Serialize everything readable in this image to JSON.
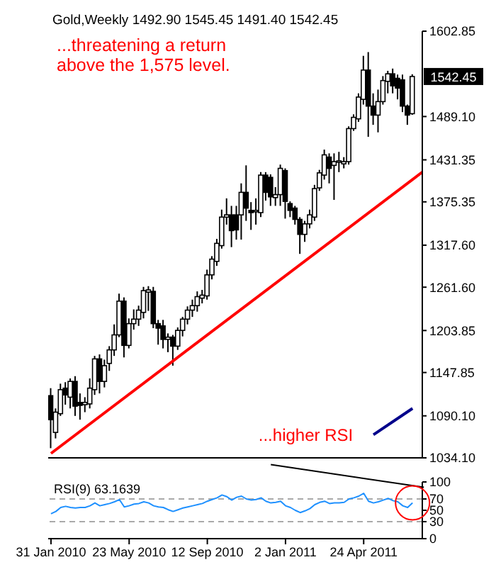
{
  "chart_data": [
    {
      "type": "candlestick",
      "title": "Gold,Weekly 1492.90 1545.45 1491.40 1542.45",
      "color": "#000000",
      "x": [
        "2010-01-31",
        "2010-02-07",
        "2010-02-14",
        "2010-02-21",
        "2010-02-28",
        "2010-03-07",
        "2010-03-14",
        "2010-03-21",
        "2010-03-28",
        "2010-04-04",
        "2010-04-11",
        "2010-04-18",
        "2010-04-25",
        "2010-05-02",
        "2010-05-09",
        "2010-05-16",
        "2010-05-23",
        "2010-05-30",
        "2010-06-06",
        "2010-06-13",
        "2010-06-20",
        "2010-06-27",
        "2010-07-04",
        "2010-07-11",
        "2010-07-18",
        "2010-07-25",
        "2010-08-01",
        "2010-08-08",
        "2010-08-15",
        "2010-08-22",
        "2010-08-29",
        "2010-09-05",
        "2010-09-12",
        "2010-09-19",
        "2010-09-26",
        "2010-10-03",
        "2010-10-10",
        "2010-10-17",
        "2010-10-24",
        "2010-10-31",
        "2010-11-07",
        "2010-11-14",
        "2010-11-21",
        "2010-11-28",
        "2010-12-05",
        "2010-12-12",
        "2010-12-19",
        "2010-12-26",
        "2011-01-02",
        "2011-01-09",
        "2011-01-16",
        "2011-01-23",
        "2011-01-30",
        "2011-02-06",
        "2011-02-13",
        "2011-02-20",
        "2011-02-27",
        "2011-03-06",
        "2011-03-13",
        "2011-03-20",
        "2011-03-27",
        "2011-04-03",
        "2011-04-10",
        "2011-04-17",
        "2011-04-24",
        "2011-05-01",
        "2011-05-08",
        "2011-05-15",
        "2011-05-22",
        "2011-05-29",
        "2011-06-05",
        "2011-06-12",
        "2011-06-19",
        "2011-06-26",
        "2011-07-03"
      ],
      "ohlc": [
        [
          1117,
          1127,
          1047,
          1085
        ],
        [
          1068,
          1100,
          1060,
          1095
        ],
        [
          1093,
          1133,
          1090,
          1125
        ],
        [
          1127,
          1135,
          1105,
          1118
        ],
        [
          1115,
          1140,
          1100,
          1136
        ],
        [
          1136,
          1143,
          1090,
          1103
        ],
        [
          1108,
          1120,
          1085,
          1104
        ],
        [
          1105,
          1115,
          1095,
          1108
        ],
        [
          1106,
          1140,
          1100,
          1127
        ],
        [
          1125,
          1170,
          1118,
          1166
        ],
        [
          1166,
          1172,
          1120,
          1136
        ],
        [
          1136,
          1165,
          1128,
          1157
        ],
        [
          1160,
          1183,
          1150,
          1178
        ],
        [
          1178,
          1212,
          1170,
          1198
        ],
        [
          1198,
          1253,
          1195,
          1243
        ],
        [
          1243,
          1248,
          1168,
          1184
        ],
        [
          1184,
          1220,
          1180,
          1213
        ],
        [
          1213,
          1232,
          1205,
          1219
        ],
        [
          1219,
          1237,
          1210,
          1231
        ],
        [
          1228,
          1262,
          1220,
          1257
        ],
        [
          1255,
          1263,
          1230,
          1258
        ],
        [
          1256,
          1262,
          1207,
          1213
        ],
        [
          1213,
          1218,
          1185,
          1207
        ],
        [
          1210,
          1218,
          1180,
          1192
        ],
        [
          1192,
          1200,
          1175,
          1195
        ],
        [
          1195,
          1198,
          1157,
          1183
        ],
        [
          1183,
          1208,
          1178,
          1204
        ],
        [
          1204,
          1222,
          1196,
          1219
        ],
        [
          1219,
          1236,
          1212,
          1231
        ],
        [
          1231,
          1245,
          1222,
          1237
        ],
        [
          1237,
          1256,
          1229,
          1249
        ],
        [
          1247,
          1258,
          1240,
          1251
        ],
        [
          1250,
          1285,
          1245,
          1278
        ],
        [
          1278,
          1303,
          1272,
          1299
        ],
        [
          1296,
          1326,
          1290,
          1320
        ],
        [
          1317,
          1365,
          1313,
          1355
        ],
        [
          1355,
          1380,
          1345,
          1358
        ],
        [
          1358,
          1370,
          1315,
          1337
        ],
        [
          1358,
          1370,
          1325,
          1338
        ],
        [
          1358,
          1400,
          1325,
          1388
        ],
        [
          1388,
          1424,
          1350,
          1367
        ],
        [
          1364,
          1375,
          1338,
          1361
        ],
        [
          1362,
          1380,
          1345,
          1364
        ],
        [
          1361,
          1415,
          1355,
          1411
        ],
        [
          1411,
          1415,
          1377,
          1388
        ],
        [
          1408,
          1412,
          1370,
          1382
        ],
        [
          1381,
          1395,
          1370,
          1385
        ],
        [
          1385,
          1425,
          1370,
          1420
        ],
        [
          1417,
          1420,
          1353,
          1376
        ],
        [
          1373,
          1376,
          1355,
          1364
        ],
        [
          1367,
          1370,
          1345,
          1352
        ],
        [
          1352,
          1355,
          1306,
          1332
        ],
        [
          1332,
          1350,
          1322,
          1346
        ],
        [
          1346,
          1365,
          1340,
          1358
        ],
        [
          1355,
          1398,
          1350,
          1393
        ],
        [
          1394,
          1418,
          1390,
          1414
        ],
        [
          1411,
          1445,
          1405,
          1438
        ],
        [
          1435,
          1440,
          1400,
          1420
        ],
        [
          1424,
          1440,
          1378,
          1429
        ],
        [
          1429,
          1442,
          1415,
          1430
        ],
        [
          1426,
          1435,
          1420,
          1429
        ],
        [
          1429,
          1476,
          1425,
          1473
        ],
        [
          1473,
          1492,
          1470,
          1488
        ],
        [
          1486,
          1520,
          1482,
          1515
        ],
        [
          1512,
          1570,
          1505,
          1551
        ],
        [
          1551,
          1575,
          1462,
          1503
        ],
        [
          1503,
          1520,
          1478,
          1491
        ],
        [
          1491,
          1525,
          1468,
          1509
        ],
        [
          1509,
          1543,
          1505,
          1537
        ],
        [
          1536,
          1550,
          1520,
          1546
        ],
        [
          1546,
          1553,
          1520,
          1530
        ],
        [
          1540,
          1545,
          1512,
          1527
        ],
        [
          1538,
          1545,
          1495,
          1503
        ],
        [
          1503,
          1505,
          1478,
          1491
        ],
        [
          1492.9,
          1545.45,
          1491.4,
          1542.45
        ]
      ],
      "series": [
        {
          "type": "line",
          "x": [
            "2010-01-31",
            "2011-07-17"
          ],
          "values": [
            1040,
            1415
          ],
          "color": "#ff0000"
        },
        {
          "type": "line",
          "x": [
            "2011-05-08",
            "2011-07-03"
          ],
          "values": [
            1065,
            1100
          ],
          "color": "#00008b"
        }
      ],
      "xlim": [
        "2010-01-27",
        "2011-07-17"
      ],
      "ylim": [
        1034.1,
        1602.85
      ],
      "yticks": [
        {
          "value": 1034.1,
          "label": "1034.10"
        },
        {
          "value": 1090.1,
          "label": "1090.10"
        },
        {
          "value": 1147.85,
          "label": "1147.85"
        },
        {
          "value": 1203.85,
          "label": "1203.85"
        },
        {
          "value": 1261.6,
          "label": "1261.60"
        },
        {
          "value": 1317.6,
          "label": "1317.60"
        },
        {
          "value": 1375.35,
          "label": "1375.35"
        },
        {
          "value": 1431.35,
          "label": "1431.35"
        },
        {
          "value": 1489.1,
          "label": "1489.10"
        },
        {
          "value": 1602.85,
          "label": "1602.85"
        }
      ],
      "tick_labels": "y",
      "annotations": [
        "...threatening a return above the 1,575 level.",
        {
          "text": "1542.45",
          "x": "2011-07-03",
          "y": 1542.45
        }
      ]
    },
    {
      "type": "line",
      "title": "RSI(9) 63.1639",
      "x": [
        "2010-01-31",
        "2010-02-07",
        "2010-02-14",
        "2010-02-21",
        "2010-02-28",
        "2010-03-07",
        "2010-03-14",
        "2010-03-21",
        "2010-03-28",
        "2010-04-04",
        "2010-04-11",
        "2010-04-18",
        "2010-04-25",
        "2010-05-02",
        "2010-05-09",
        "2010-05-16",
        "2010-05-23",
        "2010-05-30",
        "2010-06-06",
        "2010-06-13",
        "2010-06-20",
        "2010-06-27",
        "2010-07-04",
        "2010-07-11",
        "2010-07-18",
        "2010-07-25",
        "2010-08-01",
        "2010-08-08",
        "2010-08-15",
        "2010-08-22",
        "2010-08-29",
        "2010-09-05",
        "2010-09-12",
        "2010-09-19",
        "2010-09-26",
        "2010-10-03",
        "2010-10-10",
        "2010-10-17",
        "2010-10-24",
        "2010-10-31",
        "2010-11-07",
        "2010-11-14",
        "2010-11-21",
        "2010-11-28",
        "2010-12-05",
        "2010-12-12",
        "2010-12-19",
        "2010-12-26",
        "2011-01-02",
        "2011-01-09",
        "2011-01-16",
        "2011-01-23",
        "2011-01-30",
        "2011-02-06",
        "2011-02-13",
        "2011-02-20",
        "2011-02-27",
        "2011-03-06",
        "2011-03-13",
        "2011-03-20",
        "2011-03-27",
        "2011-04-03",
        "2011-04-10",
        "2011-04-17",
        "2011-04-24",
        "2011-05-01",
        "2011-05-08",
        "2011-05-15",
        "2011-05-22",
        "2011-05-29",
        "2011-06-05",
        "2011-06-12",
        "2011-06-19",
        "2011-06-26",
        "2011-07-03"
      ],
      "series": [
        {
          "color": "#1e90ff",
          "values": [
            44,
            48,
            55,
            57,
            55,
            54,
            55,
            55,
            58,
            63,
            58,
            60,
            62,
            65,
            69,
            56,
            58,
            61,
            62,
            65,
            63,
            58,
            56,
            55,
            51,
            48,
            51,
            54,
            56,
            58,
            60,
            62,
            66,
            69,
            72,
            77,
            74,
            68,
            73,
            75,
            70,
            68,
            69,
            72,
            66,
            63,
            64,
            66,
            58,
            55,
            50,
            46,
            49,
            53,
            60,
            64,
            66,
            62,
            63,
            63,
            64,
            70,
            72,
            75,
            80,
            66,
            63,
            65,
            68,
            71,
            67,
            65,
            58,
            55,
            63
          ]
        }
      ],
      "annotations": [
        "...higher RSI"
      ],
      "xlim": [
        "2010-01-27",
        "2011-07-17"
      ],
      "xticks": [
        {
          "value": "2010-01-31",
          "label": "31 Jan 2010"
        },
        {
          "value": "2010-05-23",
          "label": "23 May 2010"
        },
        {
          "value": "2010-09-12",
          "label": "12 Sep 2010"
        },
        {
          "value": "2011-01-02",
          "label": "2 Jan 2011"
        },
        {
          "value": "2011-04-24",
          "label": "24 Apr 2011"
        }
      ],
      "ylim": [
        0,
        100
      ],
      "yticks": [
        0,
        30,
        50,
        70,
        100
      ],
      "ref_lines": [
        {
          "axis": "y",
          "value": 70,
          "color": "#aaaaaa",
          "line_style": "dashed"
        },
        {
          "axis": "y",
          "value": 30,
          "color": "#aaaaaa",
          "line_style": "dashed"
        }
      ]
    }
  ]
}
